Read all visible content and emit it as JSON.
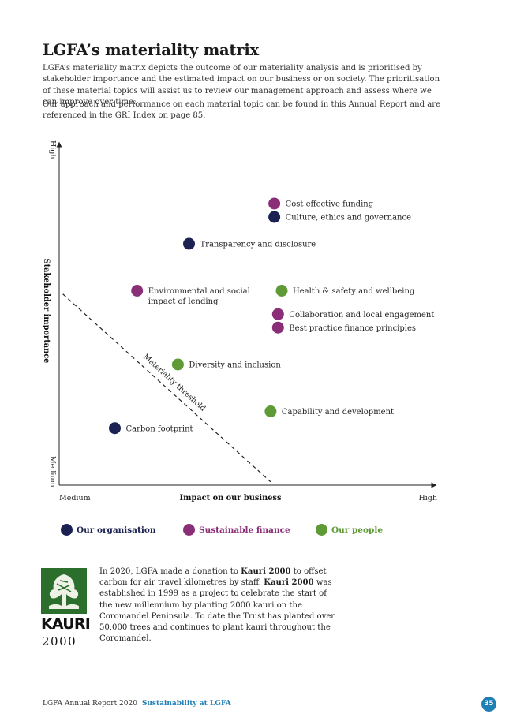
{
  "title": "LGFA’s materiality matrix",
  "intro": [
    "LGFA’s materiality matrix depicts the outcome of our materiality analysis and is prioritised by stakeholder importance and the estimated impact on our business or on society. The prioritisation of these material topics will assist us to review our management approach and assess where we can improve over time.",
    "Our approach and performance on each material topic can be found in this Annual Report and are referenced in the GRI Index on page 85."
  ],
  "chart_data": {
    "type": "scatter",
    "title": "",
    "xlabel": "Impact on our business",
    "ylabel": "Stakeholder importance",
    "x_tick_labels": {
      "min": "Medium",
      "max": "High"
    },
    "y_tick_labels": {
      "min": "Medium",
      "max": "High"
    },
    "xlim": [
      0,
      100
    ],
    "ylim": [
      0,
      100
    ],
    "grid": false,
    "threshold": {
      "label": "Materiality threshold",
      "from": [
        1,
        57
      ],
      "to": [
        57,
        1
      ]
    },
    "series": [
      {
        "name": "Our organisation",
        "color": "#1b2152",
        "points": [
          {
            "label": "Culture, ethics and governance",
            "x": 58,
            "y": 80
          },
          {
            "label": "Transparency and disclosure",
            "x": 35,
            "y": 72
          },
          {
            "label": "Carbon footprint",
            "x": 15,
            "y": 17
          }
        ]
      },
      {
        "name": "Sustainable finance",
        "color": "#8a2e78",
        "points": [
          {
            "label": "Cost effective funding",
            "x": 58,
            "y": 84
          },
          {
            "label": "Environmental and social impact of lending",
            "x": 21,
            "y": 58
          },
          {
            "label": "Collaboration and local engagement",
            "x": 59,
            "y": 51
          },
          {
            "label": "Best practice finance principles",
            "x": 59,
            "y": 47
          }
        ]
      },
      {
        "name": "Our people",
        "color": "#5e9a35",
        "points": [
          {
            "label": "Health & safety and wellbeing",
            "x": 60,
            "y": 58
          },
          {
            "label": "Diversity and inclusion",
            "x": 32,
            "y": 36
          },
          {
            "label": "Capability and development",
            "x": 57,
            "y": 22
          }
        ]
      }
    ]
  },
  "kauri": {
    "logo_word": "KAURI",
    "logo_year": "2000",
    "text_1": "In 2020, LGFA made a donation to ",
    "name_1": "Kauri 2000",
    "text_2": " to offset carbon for air travel kilometres by staff. ",
    "name_2": "Kauri 2000",
    "text_3": " was established in 1999 as a project to celebrate the start of the new millennium by planting 2000 kauri on the Coromandel Peninsula. To date the Trust has planted over 50,000 trees and continues to plant kauri throughout the Coromandel."
  },
  "footer": {
    "report": "LGFA Annual Report 2020",
    "section": "Sustainability at LGFA",
    "page_number": "35"
  }
}
